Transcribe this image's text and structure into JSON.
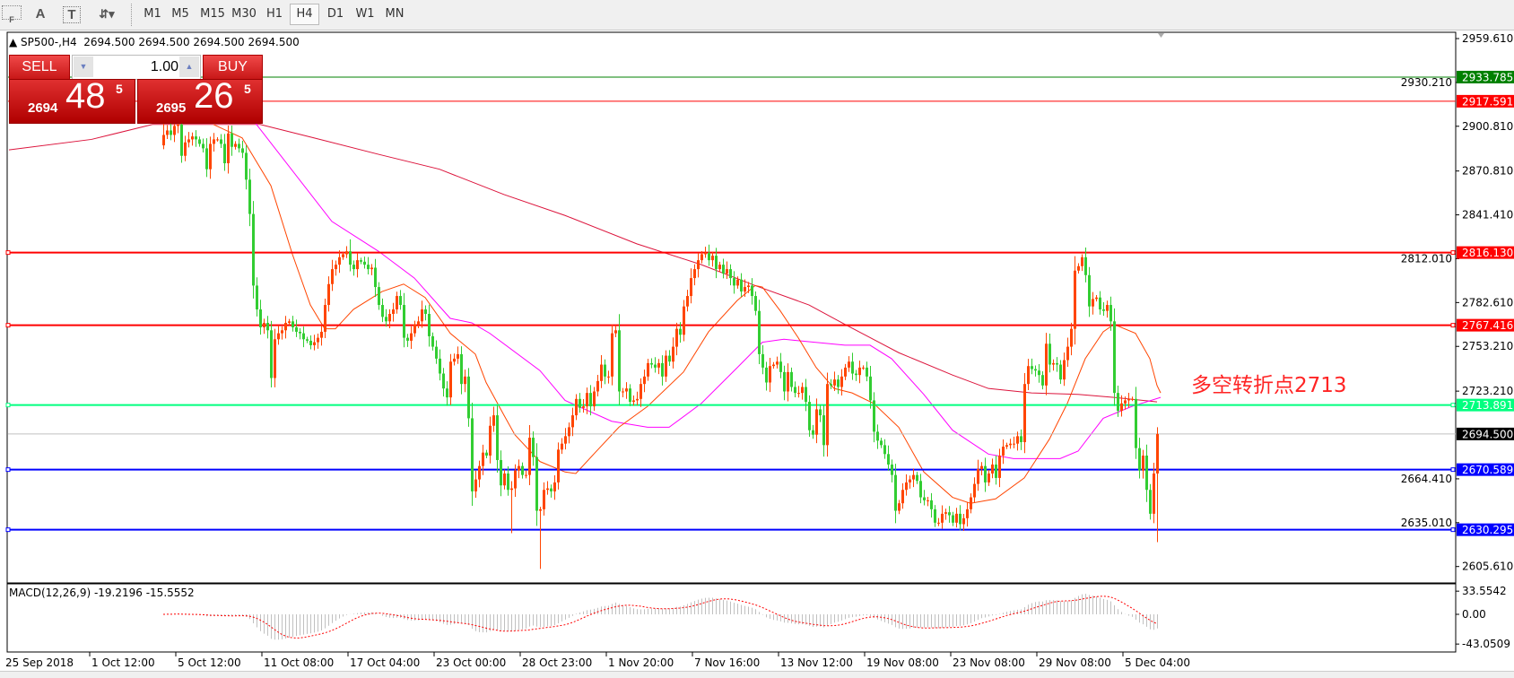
{
  "toolbar": {
    "icons": [
      "grid-f-icon",
      "text-a-icon",
      "text-label-icon",
      "arrows-dropdown-icon"
    ],
    "icon_glyphs": [
      "F",
      "A",
      "T",
      "⇵▾"
    ],
    "timeframes": [
      "M1",
      "M5",
      "M15",
      "M30",
      "H1",
      "H4",
      "D1",
      "W1",
      "MN"
    ],
    "active_timeframe": "H4"
  },
  "chart": {
    "title": "SP500-,H4",
    "ohlc": "2694.500 2694.500 2694.500 2694.500"
  },
  "trade_panel": {
    "sell_label": "SELL",
    "buy_label": "BUY",
    "lot": "1.00",
    "sell_price": {
      "prefix": "2694",
      "big": "48",
      "sup": "5"
    },
    "buy_price": {
      "prefix": "2695",
      "big": "26",
      "sup": "5"
    }
  },
  "price_axis": {
    "ticks": [
      "2959.610",
      "2930.210",
      "2900.810",
      "2870.810",
      "2841.410",
      "2812.010",
      "2782.610",
      "2753.210",
      "2723.210",
      "2664.410",
      "2635.010",
      "2605.610"
    ]
  },
  "levels": [
    {
      "price": 2933.785,
      "label": "2933.785",
      "color": "#008000",
      "thick": false
    },
    {
      "price": 2917.591,
      "label": "2917.591",
      "color": "#ff0000",
      "thick": false
    },
    {
      "price": 2816.13,
      "label": "2816.130",
      "color": "#ff0000",
      "thick": true
    },
    {
      "price": 2767.416,
      "label": "2767.416",
      "color": "#ff0000",
      "thick": true
    },
    {
      "price": 2713.891,
      "label": "2713.891",
      "color": "#00ff7f",
      "thick": true
    },
    {
      "price": 2694.5,
      "label": "2694.500",
      "color": "#c0c0c0",
      "label_bg": "#000000",
      "thick": false
    },
    {
      "price": 2670.589,
      "label": "2670.589",
      "color": "#0000ff",
      "thick": true
    },
    {
      "price": 2630.295,
      "label": "2630.295",
      "color": "#0000ff",
      "thick": true
    }
  ],
  "annotation": "多空转折点2713",
  "macd": {
    "label": "MACD(12,26,9) -19.2196 -15.5552",
    "axis": [
      {
        "value": 33.5542,
        "label": "33.5542"
      },
      {
        "value": 0,
        "label": "0.00"
      },
      {
        "value": -43.0509,
        "label": "-43.0509"
      }
    ],
    "histogram_color": "#c0c0c0",
    "signal_color": "#ff0000"
  },
  "time_axis": [
    "25 Sep 2018",
    "1 Oct 12:00",
    "5 Oct 12:00",
    "11 Oct 08:00",
    "17 Oct 04:00",
    "23 Oct 00:00",
    "28 Oct 23:00",
    "1 Nov 20:00",
    "7 Nov 16:00",
    "13 Nov 12:00",
    "19 Nov 08:00",
    "23 Nov 08:00",
    "29 Nov 08:00",
    "5 Dec 04:00"
  ],
  "chart_data": {
    "type": "candlestick",
    "symbol": "SP500-",
    "timeframe": "H4",
    "ylim": [
      2596,
      2962
    ],
    "up_color": "#ff4500",
    "down_color": "#32cd32",
    "first_open": 2888,
    "closes": [
      2895,
      2898,
      2895,
      2901,
      2902,
      2881,
      2890,
      2892,
      2894,
      2892,
      2889,
      2886,
      2872,
      2889,
      2892,
      2892,
      2889,
      2876,
      2896,
      2887,
      2889,
      2886,
      2883,
      2865,
      2842,
      2794,
      2778,
      2766,
      2769,
      2764,
      2732,
      2758,
      2762,
      2764,
      2769,
      2770,
      2766,
      2763,
      2762,
      2758,
      2757,
      2754,
      2756,
      2759,
      2763,
      2781,
      2795,
      2805,
      2808,
      2813,
      2815,
      2817,
      2808,
      2805,
      2811,
      2810,
      2808,
      2805,
      2806,
      2793,
      2781,
      2773,
      2770,
      2775,
      2778,
      2787,
      2781,
      2759,
      2757,
      2762,
      2768,
      2770,
      2778,
      2775,
      2760,
      2753,
      2745,
      2735,
      2725,
      2719,
      2743,
      2745,
      2748,
      2728,
      2733,
      2705,
      2656,
      2664,
      2673,
      2682,
      2680,
      2700,
      2707,
      2677,
      2660,
      2668,
      2657,
      2658,
      2670,
      2673,
      2667,
      2667,
      2692,
      2679,
      2643,
      2644,
      2657,
      2658,
      2656,
      2662,
      2684,
      2688,
      2693,
      2699,
      2707,
      2718,
      2712,
      2713,
      2722,
      2713,
      2723,
      2730,
      2741,
      2733,
      2733,
      2762,
      2764,
      2723,
      2723,
      2725,
      2716,
      2717,
      2718,
      2728,
      2733,
      2742,
      2741,
      2739,
      2742,
      2733,
      2747,
      2743,
      2753,
      2765,
      2761,
      2780,
      2787,
      2799,
      2805,
      2811,
      2815,
      2816,
      2811,
      2814,
      2805,
      2808,
      2802,
      2805,
      2799,
      2794,
      2798,
      2790,
      2793,
      2794,
      2787,
      2777,
      2748,
      2739,
      2729,
      2740,
      2741,
      2743,
      2736,
      2723,
      2736,
      2726,
      2722,
      2722,
      2726,
      2716,
      2697,
      2694,
      2711,
      2707,
      2687,
      2728,
      2727,
      2731,
      2726,
      2733,
      2739,
      2743,
      2735,
      2734,
      2739,
      2739,
      2733,
      2717,
      2696,
      2690,
      2687,
      2681,
      2674,
      2667,
      2643,
      2648,
      2657,
      2662,
      2664,
      2667,
      2663,
      2652,
      2650,
      2650,
      2644,
      2635,
      2635,
      2641,
      2642,
      2640,
      2635,
      2641,
      2634,
      2638,
      2644,
      2652,
      2661,
      2671,
      2673,
      2662,
      2668,
      2674,
      2665,
      2680,
      2686,
      2687,
      2688,
      2688,
      2693,
      2689,
      2728,
      2740,
      2738,
      2737,
      2734,
      2727,
      2755,
      2741,
      2742,
      2741,
      2731,
      2744,
      2753,
      2765,
      2804,
      2807,
      2813,
      2801,
      2780,
      2785,
      2786,
      2778,
      2777,
      2781,
      2770,
      2722,
      2710,
      2715,
      2717,
      2718,
      2718,
      2685,
      2670,
      2680,
      2657,
      2641,
      2668,
      2694.5
    ],
    "wick_extremes": [
      {
        "bar": 0,
        "high": 2912
      },
      {
        "bar": 52,
        "high": 2825
      },
      {
        "bar": 97,
        "low": 2628
      },
      {
        "bar": 105,
        "low": 2604
      },
      {
        "bar": 151,
        "high": 2820
      },
      {
        "bar": 256,
        "high": 2815
      },
      {
        "bar": 277,
        "high": 2699,
        "low": 2622
      }
    ],
    "moving_averages": [
      {
        "color": "#dc143c",
        "points": [
          [
            -43,
            2885
          ],
          [
            -20,
            2892
          ],
          [
            -3,
            2902
          ],
          [
            27,
            2902
          ],
          [
            42,
            2893
          ],
          [
            60,
            2882
          ],
          [
            77,
            2872
          ],
          [
            95,
            2855
          ],
          [
            112,
            2841
          ],
          [
            132,
            2822
          ],
          [
            150,
            2808
          ],
          [
            165,
            2794
          ],
          [
            180,
            2781
          ],
          [
            190,
            2768
          ],
          [
            205,
            2749
          ],
          [
            220,
            2734
          ],
          [
            230,
            2725
          ],
          [
            242,
            2722
          ],
          [
            255,
            2721
          ],
          [
            265,
            2719
          ],
          [
            277,
            2716
          ]
        ]
      },
      {
        "color": "#ff00ff",
        "points": [
          [
            22,
            2912
          ],
          [
            26,
            2902
          ],
          [
            47,
            2837
          ],
          [
            60,
            2817
          ],
          [
            70,
            2799
          ],
          [
            80,
            2772
          ],
          [
            86,
            2769
          ],
          [
            91,
            2762
          ],
          [
            105,
            2737
          ],
          [
            112,
            2717
          ],
          [
            125,
            2703
          ],
          [
            135,
            2699
          ],
          [
            141,
            2699
          ],
          [
            150,
            2715
          ],
          [
            160,
            2739
          ],
          [
            167,
            2756
          ],
          [
            173,
            2758
          ],
          [
            190,
            2754
          ],
          [
            197,
            2754
          ],
          [
            203,
            2745
          ],
          [
            212,
            2721
          ],
          [
            220,
            2697
          ],
          [
            230,
            2681
          ],
          [
            237,
            2678
          ],
          [
            250,
            2678
          ],
          [
            255,
            2683
          ],
          [
            262,
            2705
          ],
          [
            270,
            2713
          ],
          [
            278,
            2719
          ]
        ]
      },
      {
        "color": "#ff4500",
        "points": [
          [
            14,
            2902
          ],
          [
            22,
            2893
          ],
          [
            30,
            2861
          ],
          [
            36,
            2815
          ],
          [
            41,
            2781
          ],
          [
            45,
            2765
          ],
          [
            48,
            2765
          ],
          [
            53,
            2778
          ],
          [
            61,
            2790
          ],
          [
            67,
            2795
          ],
          [
            73,
            2786
          ],
          [
            80,
            2762
          ],
          [
            87,
            2748
          ],
          [
            90,
            2729
          ],
          [
            95,
            2707
          ],
          [
            98,
            2694
          ],
          [
            105,
            2676
          ],
          [
            112,
            2669
          ],
          [
            115,
            2668
          ],
          [
            120,
            2681
          ],
          [
            127,
            2699
          ],
          [
            135,
            2713
          ],
          [
            145,
            2736
          ],
          [
            152,
            2763
          ],
          [
            160,
            2784
          ],
          [
            165,
            2794
          ],
          [
            167,
            2793
          ],
          [
            172,
            2777
          ],
          [
            177,
            2759
          ],
          [
            182,
            2739
          ],
          [
            187,
            2725
          ],
          [
            192,
            2722
          ],
          [
            198,
            2715
          ],
          [
            205,
            2699
          ],
          [
            212,
            2669
          ],
          [
            220,
            2652
          ],
          [
            225,
            2648
          ],
          [
            232,
            2651
          ],
          [
            240,
            2665
          ],
          [
            247,
            2691
          ],
          [
            252,
            2715
          ],
          [
            257,
            2745
          ],
          [
            262,
            2763
          ],
          [
            265,
            2768
          ],
          [
            271,
            2762
          ],
          [
            275,
            2745
          ],
          [
            277,
            2727
          ],
          [
            278,
            2722
          ]
        ]
      }
    ]
  }
}
